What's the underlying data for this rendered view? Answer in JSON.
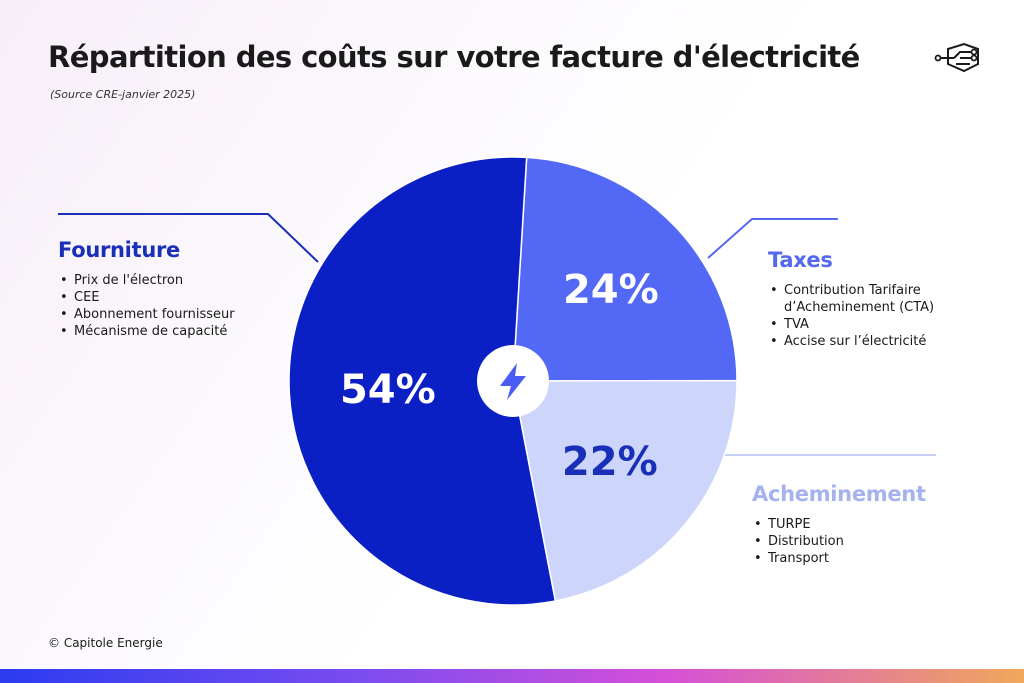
{
  "header": {
    "title": "Répartition des coûts sur votre facture d'électricité",
    "subtitle": "(Source CRE-janvier 2025)"
  },
  "chart_data": {
    "type": "pie",
    "center_icon": "lightning-icon",
    "slices": [
      {
        "name": "Fourniture",
        "value": 54,
        "label": "54%",
        "color": "#0a1fc4",
        "label_color": "#ffffff"
      },
      {
        "name": "Taxes",
        "value": 24,
        "label": "24%",
        "color": "#5468f6",
        "label_color": "#ffffff"
      },
      {
        "name": "Acheminement",
        "value": 22,
        "label": "22%",
        "color": "#cdd5fb",
        "label_color": "#1a2fb8"
      }
    ],
    "legend": [
      {
        "title": "Fourniture",
        "items": [
          "Prix de l'électron",
          "CEE",
          "Abonnement fournisseur",
          "Mécanisme de capacité"
        ]
      },
      {
        "title": "Taxes",
        "items": [
          "Contribution Tarifaire",
          "d’Acheminement (CTA)",
          "TVA",
          "Accise sur l’électricité"
        ]
      },
      {
        "title": "Acheminement",
        "items": [
          "TURPE",
          "Distribution",
          "Transport"
        ]
      }
    ]
  },
  "footer": {
    "copyright": "© Capitole Energie"
  },
  "colors": {
    "primary_dark": "#0a1fc4",
    "primary_mid": "#5468f6",
    "primary_light": "#cdd5fb",
    "lightning": "#4a5cf2"
  },
  "logo": {
    "icon": "circuit-logo-icon"
  }
}
